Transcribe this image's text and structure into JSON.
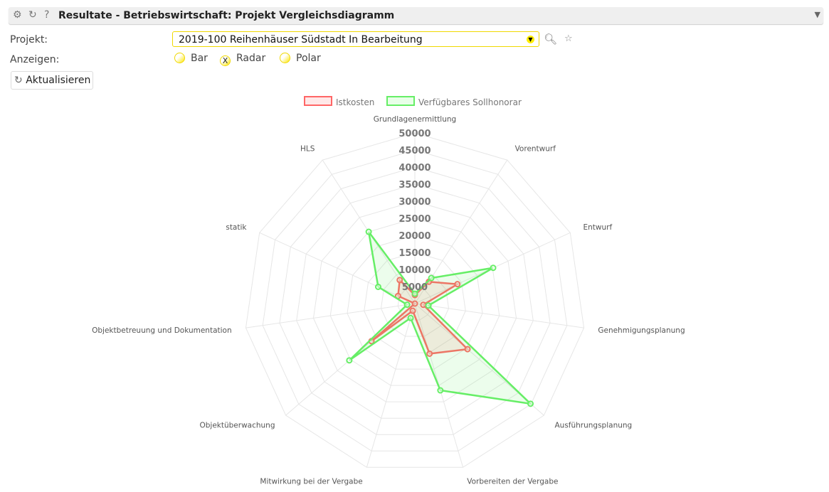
{
  "header": {
    "title": "Resultate - Betriebswirtschaft: Projekt Vergleichsdiagramm",
    "icons": [
      "gear-icon",
      "refresh-icon",
      "help-icon"
    ],
    "collapse_icon": "triangle-down-icon"
  },
  "form": {
    "project_label": "Projekt:",
    "project_value": "2019-100 Reihenhäuser Südstadt In Bearbeitung",
    "show_label": "Anzeigen:",
    "options": [
      {
        "label": "Bar",
        "selected": false
      },
      {
        "label": "Radar",
        "selected": true
      },
      {
        "label": "Polar",
        "selected": false
      }
    ],
    "selected_mark": "X",
    "refresh_label": "Aktualisieren"
  },
  "chart_data": {
    "type": "radar",
    "categories": [
      "Grundlagenermittlung",
      "Vorentwurf",
      "Entwurf",
      "Genehmigungsplanung",
      "Ausführungsplanung",
      "Vorbereiten der Vergabe",
      "Mitwirkung bei der Vergabe",
      "Objektüberwachung",
      "Objektbetreuung und Dokumentation",
      "statik",
      "HLS"
    ],
    "ticks": [
      "5000",
      "10000",
      "15000",
      "20000",
      "25000",
      "30000",
      "35000",
      "40000",
      "45000",
      "50000"
    ],
    "rlim": [
      0,
      50000
    ],
    "legend_position": "top",
    "series": [
      {
        "name": "Istkosten",
        "color": "#ff6666",
        "values": [
          2500,
          7600,
          13700,
          2500,
          20400,
          15300,
          2200,
          16800,
          0,
          5400,
          8200
        ]
      },
      {
        "name": "Verfügbares Sollhonorar",
        "color": "#66ee66",
        "values": [
          2900,
          8900,
          25200,
          4000,
          44800,
          26500,
          4400,
          25400,
          2300,
          11800,
          25000
        ]
      }
    ]
  }
}
